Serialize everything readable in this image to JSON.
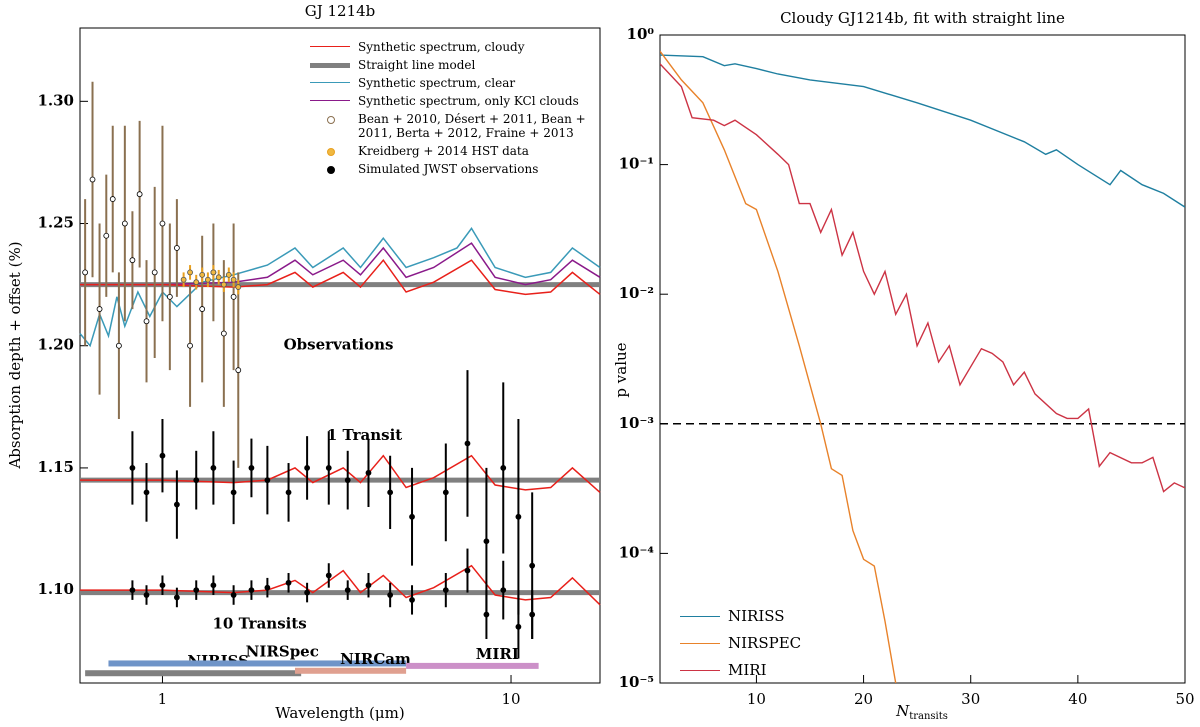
{
  "chart_data": [
    {
      "type": "spectrum",
      "title": "GJ 1214b",
      "xlabel": "Wavelength (μm)",
      "ylabel": "Absorption depth + offset (%)",
      "xscale": "log",
      "xlim": [
        0.58,
        18
      ],
      "xticks": [
        1,
        10
      ],
      "ylim": [
        1.062,
        1.33
      ],
      "yticks": [
        {
          "value": 1.1,
          "label": "1.10"
        },
        1.15,
        {
          "value": 1.2,
          "label": "1.20"
        },
        1.25,
        {
          "value": 1.3,
          "label": "1.30"
        }
      ],
      "legend": "upper right",
      "series": [
        {
          "name": "Straight line model",
          "kind": "line",
          "color": "#808080",
          "width": 5,
          "x": [
            0.58,
            18
          ],
          "values": [
            1.225,
            1.225
          ]
        },
        {
          "kind": "line",
          "color": "#808080",
          "width": 5,
          "x": [
            0.58,
            18
          ],
          "values": [
            1.145,
            1.145
          ]
        },
        {
          "kind": "line",
          "color": "#808080",
          "width": 5,
          "x": [
            0.58,
            18
          ],
          "values": [
            1.099,
            1.099
          ]
        },
        {
          "name": "Synthetic spectrum, clear",
          "kind": "line",
          "color": "#3a9ab8",
          "width": 1.5,
          "x": [
            0.58,
            0.62,
            0.66,
            0.7,
            0.74,
            0.78,
            0.85,
            0.92,
            1.0,
            1.1,
            1.3,
            1.6,
            2.0,
            2.4,
            2.7,
            3.3,
            3.7,
            4.3,
            5.0,
            6.0,
            7.0,
            7.7,
            9.0,
            11,
            13,
            15,
            18
          ],
          "values": [
            1.205,
            1.2,
            1.213,
            1.204,
            1.22,
            1.208,
            1.222,
            1.212,
            1.222,
            1.216,
            1.226,
            1.229,
            1.233,
            1.24,
            1.232,
            1.24,
            1.232,
            1.244,
            1.232,
            1.236,
            1.24,
            1.248,
            1.232,
            1.228,
            1.23,
            1.24,
            1.232
          ]
        },
        {
          "name": "Synthetic spectrum, only KCl clouds",
          "kind": "line",
          "color": "#8a1a8a",
          "width": 1.5,
          "x": [
            0.58,
            1.0,
            1.6,
            2.0,
            2.4,
            2.7,
            3.3,
            3.7,
            4.3,
            5.0,
            6.0,
            7.7,
            9.0,
            11,
            13,
            15,
            18
          ],
          "values": [
            1.225,
            1.225,
            1.226,
            1.228,
            1.235,
            1.229,
            1.235,
            1.229,
            1.24,
            1.228,
            1.232,
            1.242,
            1.228,
            1.225,
            1.227,
            1.235,
            1.228
          ]
        },
        {
          "name": "Synthetic spectrum, cloudy",
          "kind": "line",
          "color": "#e8201a",
          "width": 1.5,
          "x": [
            0.58,
            1.0,
            1.6,
            2.0,
            2.4,
            2.7,
            3.3,
            3.7,
            4.3,
            5.0,
            6.0,
            7.7,
            9.0,
            11,
            13,
            15,
            18
          ],
          "values": [
            1.225,
            1.225,
            1.224,
            1.225,
            1.23,
            1.224,
            1.23,
            1.224,
            1.235,
            1.222,
            1.226,
            1.235,
            1.223,
            1.221,
            1.222,
            1.23,
            1.221
          ]
        },
        {
          "kind": "line",
          "color": "#e8201a",
          "width": 1.5,
          "x": [
            0.58,
            1.0,
            1.6,
            2.0,
            2.4,
            2.7,
            3.3,
            3.7,
            4.3,
            5.0,
            6.0,
            7.7,
            9.0,
            11,
            13,
            15,
            18
          ],
          "values": [
            1.145,
            1.145,
            1.144,
            1.145,
            1.15,
            1.144,
            1.15,
            1.144,
            1.155,
            1.142,
            1.146,
            1.155,
            1.143,
            1.141,
            1.142,
            1.15,
            1.14
          ]
        },
        {
          "kind": "line",
          "color": "#e8201a",
          "width": 1.5,
          "x": [
            0.58,
            1.0,
            1.6,
            2.0,
            2.4,
            2.7,
            3.3,
            3.7,
            4.3,
            5.0,
            6.0,
            7.7,
            9.0,
            11,
            13,
            15,
            18
          ],
          "values": [
            1.1,
            1.1,
            1.099,
            1.1,
            1.104,
            1.099,
            1.108,
            1.099,
            1.106,
            1.097,
            1.101,
            1.11,
            1.098,
            1.096,
            1.097,
            1.105,
            1.094
          ]
        },
        {
          "name": "Bean + 2010, Désert + 2011, Bean + 2011, Berta + 2012, Fraine + 2013",
          "kind": "errorbar",
          "color": "#8a7050",
          "marker": "#ffffff",
          "x": [
            0.6,
            0.63,
            0.66,
            0.69,
            0.72,
            0.75,
            0.78,
            0.82,
            0.86,
            0.9,
            0.95,
            1.0,
            1.05,
            1.1,
            1.2,
            1.3,
            1.4,
            1.5,
            1.6,
            1.65
          ],
          "values": [
            1.23,
            1.268,
            1.215,
            1.245,
            1.26,
            1.2,
            1.25,
            1.235,
            1.262,
            1.21,
            1.23,
            1.25,
            1.22,
            1.24,
            1.2,
            1.215,
            1.23,
            1.205,
            1.22,
            1.19
          ],
          "errors": [
            0.03,
            0.04,
            0.035,
            0.025,
            0.03,
            0.03,
            0.04,
            0.02,
            0.03,
            0.025,
            0.035,
            0.04,
            0.03,
            0.02,
            0.025,
            0.03,
            0.02,
            0.03,
            0.03,
            0.04
          ]
        },
        {
          "name": "Kreidberg + 2014 HST data",
          "kind": "errorbar",
          "color": "#e8a020",
          "marker": "#f0b840",
          "x": [
            1.15,
            1.2,
            1.25,
            1.3,
            1.35,
            1.4,
            1.45,
            1.5,
            1.55,
            1.6,
            1.65
          ],
          "values": [
            1.227,
            1.23,
            1.226,
            1.229,
            1.227,
            1.23,
            1.228,
            1.225,
            1.229,
            1.227,
            1.224
          ],
          "errors": [
            0.003,
            0.003,
            0.003,
            0.003,
            0.003,
            0.003,
            0.003,
            0.003,
            0.003,
            0.003,
            0.003
          ]
        },
        {
          "name": "Simulated JWST observations",
          "kind": "errorbar",
          "color": "#000000",
          "marker": "#000000",
          "x": [
            0.82,
            0.9,
            1.0,
            1.1,
            1.25,
            1.4,
            1.6,
            1.8,
            2.0,
            2.3,
            2.6,
            3.0,
            3.4,
            3.9,
            4.5,
            5.2,
            6.5,
            7.5,
            8.5,
            9.5,
            10.5,
            11.5
          ],
          "values": [
            1.15,
            1.14,
            1.155,
            1.135,
            1.145,
            1.15,
            1.14,
            1.15,
            1.145,
            1.14,
            1.15,
            1.15,
            1.145,
            1.148,
            1.14,
            1.13,
            1.14,
            1.16,
            1.12,
            1.15,
            1.13,
            1.11
          ],
          "errors": [
            0.015,
            0.012,
            0.015,
            0.014,
            0.012,
            0.015,
            0.013,
            0.012,
            0.014,
            0.012,
            0.013,
            0.015,
            0.012,
            0.014,
            0.015,
            0.02,
            0.02,
            0.03,
            0.03,
            0.035,
            0.04,
            0.03
          ]
        },
        {
          "kind": "errorbar",
          "color": "#000000",
          "marker": "#000000",
          "x": [
            0.82,
            0.9,
            1.0,
            1.1,
            1.25,
            1.4,
            1.6,
            1.8,
            2.0,
            2.3,
            2.6,
            3.0,
            3.4,
            3.9,
            4.5,
            5.2,
            6.5,
            7.5,
            8.5,
            9.5,
            10.5,
            11.5
          ],
          "values": [
            1.1,
            1.098,
            1.102,
            1.097,
            1.1,
            1.102,
            1.098,
            1.1,
            1.101,
            1.103,
            1.099,
            1.106,
            1.1,
            1.102,
            1.098,
            1.096,
            1.1,
            1.108,
            1.09,
            1.1,
            1.085,
            1.09
          ],
          "errors": [
            0.004,
            0.004,
            0.004,
            0.004,
            0.004,
            0.004,
            0.004,
            0.004,
            0.004,
            0.004,
            0.004,
            0.005,
            0.004,
            0.005,
            0.005,
            0.006,
            0.007,
            0.009,
            0.01,
            0.012,
            0.013,
            0.01
          ]
        }
      ],
      "annotations": [
        {
          "text": "Observations",
          "x": 3.2,
          "y": 1.2
        },
        {
          "text": "1 Transit",
          "x": 3.8,
          "y": 1.163
        },
        {
          "text": "10 Transits",
          "x": 1.9,
          "y": 1.086
        }
      ],
      "bands": [
        {
          "name": "NIRISS",
          "color": "#808080",
          "x": [
            0.6,
            2.5
          ],
          "y": 1.066
        },
        {
          "name": "NIRSpec",
          "color": "#6f94c8",
          "x": [
            0.7,
            5.0
          ],
          "y": 1.07
        },
        {
          "name": "NIRCam",
          "color": "#e0a090",
          "x": [
            2.4,
            5.0
          ],
          "y": 1.067
        },
        {
          "name": "MIRI",
          "color": "#cc90c8",
          "x": [
            5.0,
            12.0
          ],
          "y": 1.069
        }
      ]
    },
    {
      "type": "line",
      "title": "Cloudy GJ1214b, fit with straight line",
      "xlabel": {
        "main": "N",
        "sub": "transits"
      },
      "ylabel": "p value",
      "xlim": [
        1,
        50
      ],
      "xticks": [
        10,
        20,
        30,
        40,
        50
      ],
      "yscale": "log",
      "ylim": [
        1e-05,
        1
      ],
      "yticks": [
        {
          "value": 1e-05,
          "label": "10⁻⁵"
        },
        {
          "value": 0.0001,
          "label": "10⁻⁴"
        },
        {
          "value": 0.001,
          "label": "10⁻³"
        },
        {
          "value": 0.01,
          "label": "10⁻²"
        },
        {
          "value": 0.1,
          "label": "10⁻¹"
        },
        {
          "value": 1,
          "label": "10⁰"
        }
      ],
      "hline": 0.001,
      "legend": "lower left",
      "series": [
        {
          "name": "NIRISS",
          "color": "#1f7fa0",
          "x": [
            1,
            5,
            7,
            8,
            10,
            12,
            15,
            20,
            25,
            30,
            35,
            37,
            38,
            40,
            43,
            44,
            46,
            48,
            50
          ],
          "values": [
            0.7,
            0.68,
            0.58,
            0.6,
            0.55,
            0.5,
            0.45,
            0.4,
            0.3,
            0.22,
            0.15,
            0.12,
            0.13,
            0.1,
            0.07,
            0.09,
            0.07,
            0.06,
            0.047
          ]
        },
        {
          "name": "NIRSPEC",
          "color": "#e8822a",
          "x": [
            1,
            3,
            5,
            7,
            9,
            10,
            12,
            14,
            16,
            17,
            18,
            19,
            20,
            21,
            22,
            23
          ],
          "values": [
            0.75,
            0.45,
            0.3,
            0.13,
            0.05,
            0.045,
            0.015,
            0.004,
            0.001,
            0.00045,
            0.0004,
            0.00015,
            9e-05,
            8e-05,
            3e-05,
            1e-05
          ]
        },
        {
          "name": "MIRI",
          "color": "#cc3344",
          "x": [
            1,
            3,
            4,
            6,
            7,
            8,
            10,
            12,
            13,
            14,
            15,
            16,
            17,
            18,
            19,
            20,
            21,
            22,
            23,
            24,
            25,
            26,
            27,
            28,
            29,
            31,
            32,
            33,
            34,
            35,
            36,
            38,
            39,
            40,
            41,
            42,
            43,
            45,
            46,
            47,
            48,
            49,
            50
          ],
          "values": [
            0.6,
            0.4,
            0.23,
            0.22,
            0.2,
            0.22,
            0.17,
            0.12,
            0.1,
            0.05,
            0.05,
            0.03,
            0.045,
            0.02,
            0.03,
            0.015,
            0.01,
            0.015,
            0.007,
            0.01,
            0.004,
            0.006,
            0.003,
            0.004,
            0.002,
            0.0038,
            0.0035,
            0.003,
            0.002,
            0.0025,
            0.0017,
            0.0012,
            0.0011,
            0.0011,
            0.0013,
            0.00047,
            0.0006,
            0.0005,
            0.0005,
            0.00055,
            0.0003,
            0.00035,
            0.00032
          ]
        }
      ]
    }
  ]
}
